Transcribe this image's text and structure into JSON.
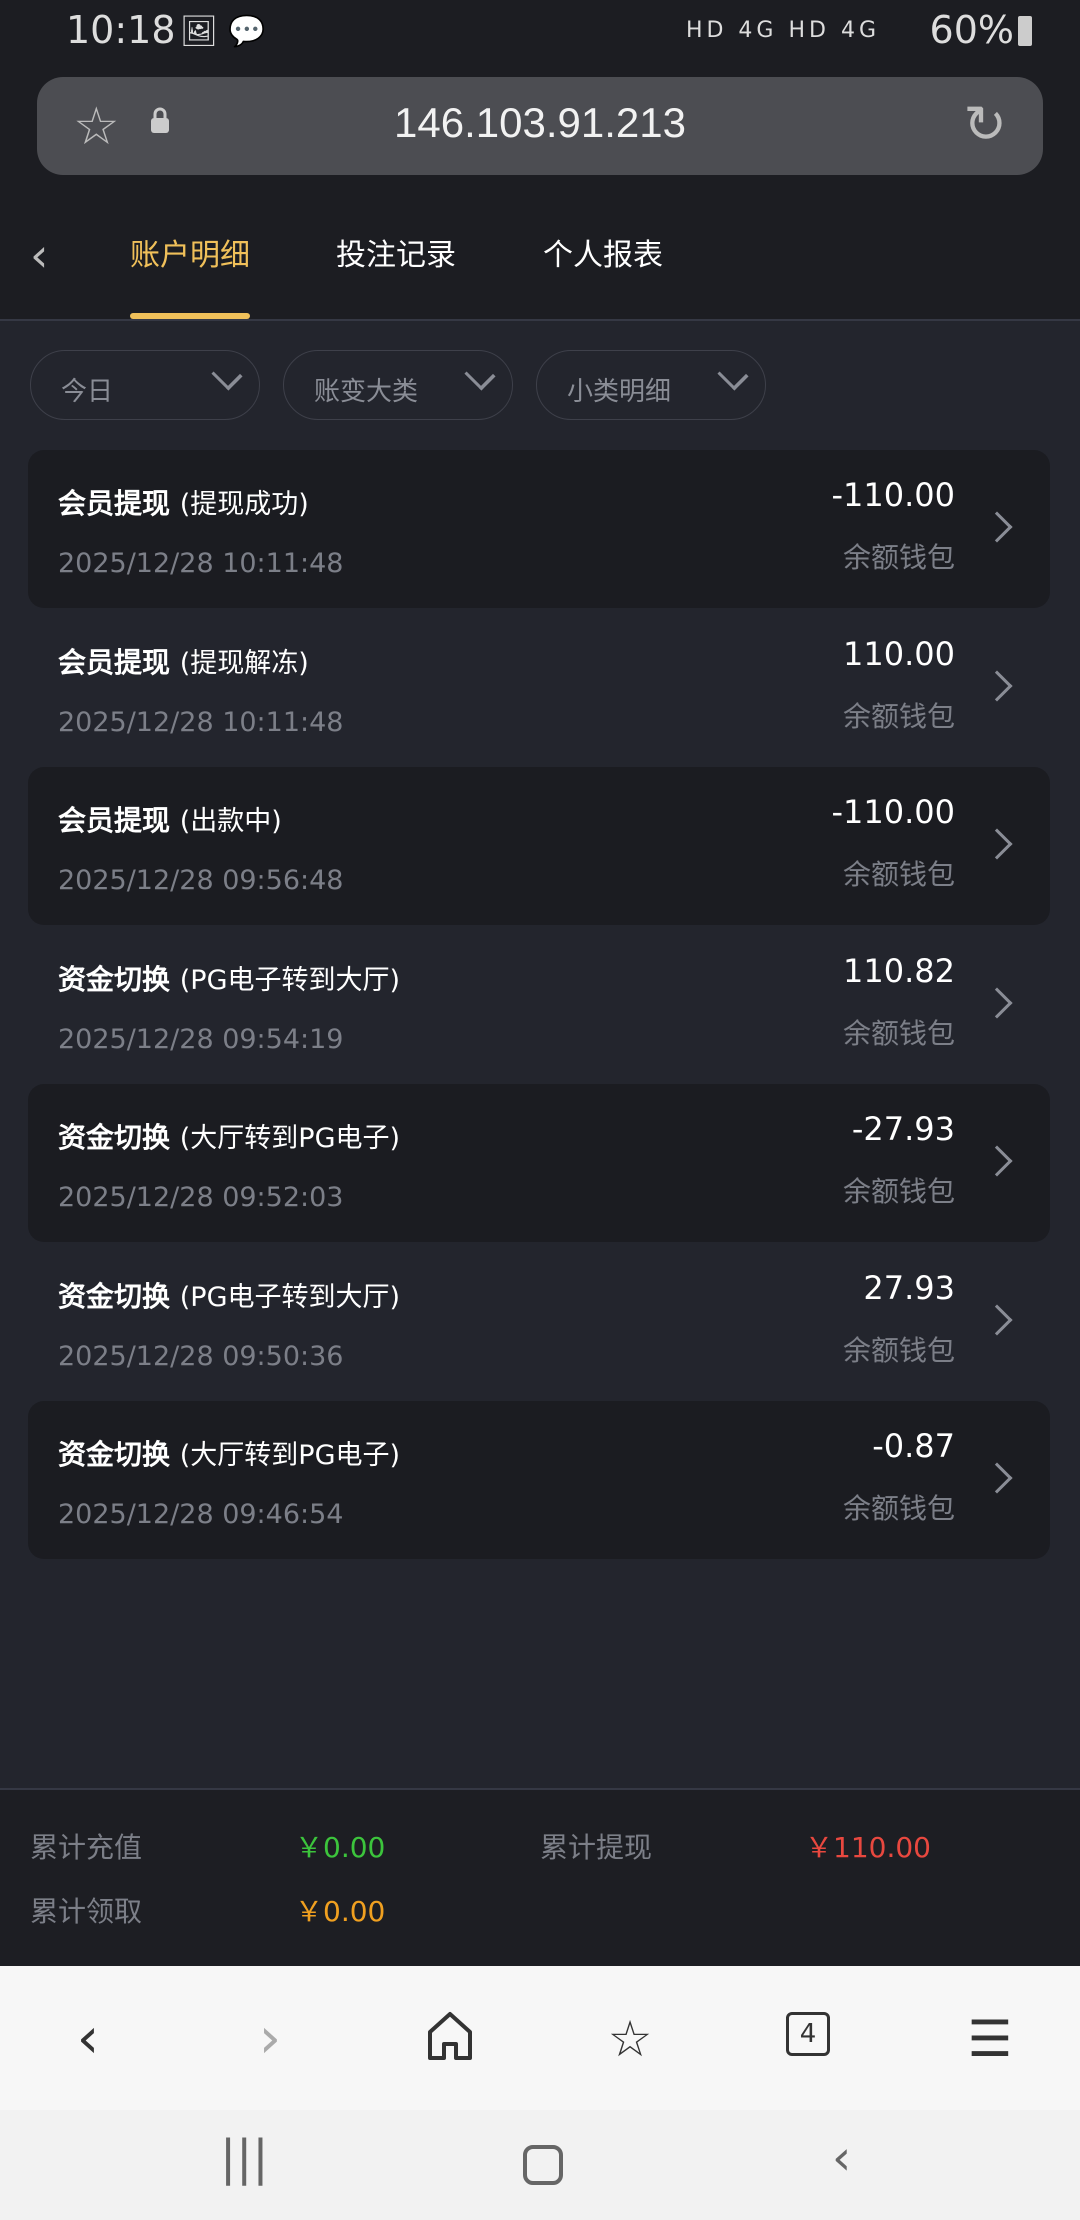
{
  "status_bar": {
    "time": "10:18",
    "battery": "60%",
    "network": "HD 4G HD 4G"
  },
  "browser": {
    "url": "146.103.91.213",
    "tab_count": "4"
  },
  "tabs": [
    {
      "label": "账户明细",
      "active": true
    },
    {
      "label": "投注记录",
      "active": false
    },
    {
      "label": "个人报表",
      "active": false
    }
  ],
  "filters": [
    {
      "label": "今日"
    },
    {
      "label": "账变大类"
    },
    {
      "label": "小类明细"
    }
  ],
  "records": [
    {
      "title": "会员提现",
      "detail": "(提现成功)",
      "date": "2025/12/28 10:11:48",
      "amount": "-110.00",
      "wallet": "余额钱包"
    },
    {
      "title": "会员提现",
      "detail": "(提现解冻)",
      "date": "2025/12/28 10:11:48",
      "amount": "110.00",
      "wallet": "余额钱包"
    },
    {
      "title": "会员提现",
      "detail": "(出款中)",
      "date": "2025/12/28 09:56:48",
      "amount": "-110.00",
      "wallet": "余额钱包"
    },
    {
      "title": "资金切换",
      "detail": "(PG电子转到大厅)",
      "date": "2025/12/28 09:54:19",
      "amount": "110.82",
      "wallet": "余额钱包"
    },
    {
      "title": "资金切换",
      "detail": "(大厅转到PG电子)",
      "date": "2025/12/28 09:52:03",
      "amount": "-27.93",
      "wallet": "余额钱包"
    },
    {
      "title": "资金切换",
      "detail": "(PG电子转到大厅)",
      "date": "2025/12/28 09:50:36",
      "amount": "27.93",
      "wallet": "余额钱包"
    },
    {
      "title": "资金切换",
      "detail": "(大厅转到PG电子)",
      "date": "2025/12/28 09:46:54",
      "amount": "-0.87",
      "wallet": "余额钱包"
    }
  ],
  "summary": {
    "deposit_label": "累计充值",
    "deposit_value": "￥0.00",
    "withdraw_label": "累计提现",
    "withdraw_value": "￥110.00",
    "claim_label": "累计领取",
    "claim_value": "￥0.00"
  },
  "colors": {
    "accent": "#f0c05a",
    "green": "#3cc43c",
    "red": "#e8483f",
    "orange": "#f0a020"
  }
}
